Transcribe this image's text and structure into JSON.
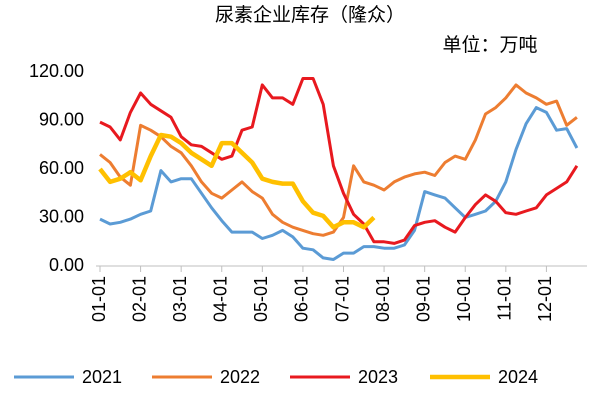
{
  "chart_data": {
    "type": "line",
    "title": "尿素企业库存（隆众）",
    "subtitle": "单位：万吨",
    "categories": [
      "01-01",
      null,
      null,
      null,
      "02-01",
      null,
      null,
      null,
      "03-01",
      null,
      null,
      null,
      "04-01",
      null,
      null,
      null,
      "05-01",
      null,
      null,
      null,
      "06-01",
      null,
      null,
      null,
      "07-01",
      null,
      null,
      null,
      "08-01",
      null,
      null,
      null,
      "09-01",
      null,
      null,
      null,
      "10-01",
      null,
      null,
      null,
      "11-01",
      null,
      null,
      null,
      "12-01",
      null,
      null,
      null
    ],
    "series": [
      {
        "name": "2021",
        "color": "#5b9bd5",
        "values": [
          29,
          26,
          27,
          29,
          32,
          34,
          59,
          52,
          54,
          54,
          45,
          36,
          28,
          21,
          21,
          21,
          17,
          19,
          22,
          18,
          11,
          10,
          5,
          4,
          8,
          8,
          12,
          12,
          11,
          11,
          13,
          22,
          46,
          44,
          42,
          36,
          30,
          32,
          34,
          40,
          52,
          72,
          88,
          98,
          95,
          84,
          85,
          73
        ]
      },
      {
        "name": "2022",
        "color": "#ed7d31",
        "values": [
          69,
          64,
          55,
          50,
          87,
          84,
          80,
          74,
          70,
          62,
          52,
          45,
          42,
          47,
          52,
          46,
          42,
          32,
          27,
          24,
          22,
          20,
          19,
          21,
          30,
          62,
          52,
          50,
          47,
          52,
          55,
          57,
          58,
          56,
          64,
          68,
          66,
          78,
          94,
          98,
          104,
          112,
          107,
          104,
          100,
          102,
          87,
          92
        ]
      },
      {
        "name": "2023",
        "color": "#e8191f",
        "values": [
          89,
          86,
          78,
          95,
          107,
          100,
          96,
          92,
          80,
          75,
          74,
          70,
          66,
          68,
          84,
          86,
          112,
          104,
          104,
          100,
          116,
          116,
          100,
          62,
          45,
          32,
          26,
          15,
          15,
          14,
          16,
          25,
          27,
          28,
          24,
          21,
          30,
          38,
          44,
          40,
          33,
          32,
          34,
          36,
          44,
          48,
          52,
          62
        ]
      },
      {
        "name": "2024",
        "color": "#ffc000",
        "values": [
          60,
          52,
          54,
          58,
          53,
          68,
          81,
          80,
          76,
          70,
          66,
          62,
          76,
          76,
          70,
          64,
          54,
          52,
          51,
          51,
          40,
          33,
          31,
          24,
          27,
          27,
          24,
          30,
          null,
          null,
          null,
          null,
          null,
          null,
          null,
          null,
          null,
          null,
          null,
          null,
          null,
          null,
          null,
          null,
          null,
          null,
          null,
          null
        ]
      }
    ],
    "ylim": [
      0,
      120
    ],
    "yticks": [
      {
        "value": 0,
        "label": "0.00"
      },
      {
        "value": 30,
        "label": "30.00"
      },
      {
        "value": 60,
        "label": "60.00"
      },
      {
        "value": 90,
        "label": "90.00"
      },
      {
        "value": 120,
        "label": "120.00"
      }
    ],
    "grid": false,
    "legend": "bottom"
  }
}
